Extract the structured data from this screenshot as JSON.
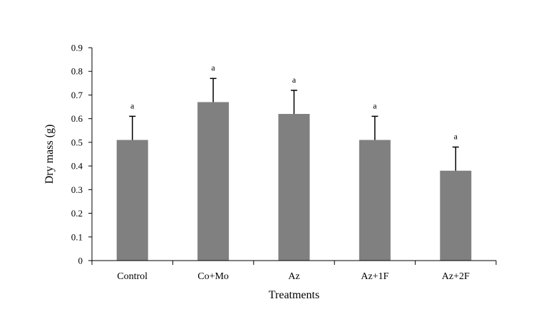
{
  "chart_data": {
    "type": "bar",
    "title": "",
    "xlabel": "Treatments",
    "ylabel": "Dry mass (g)",
    "ylim": [
      0,
      0.9
    ],
    "yticks": [
      "0",
      "0.1",
      "0.2",
      "0.3",
      "0.4",
      "0.5",
      "0.6",
      "0.7",
      "0.8",
      "0.9"
    ],
    "categories": [
      "Control",
      "Co+Mo",
      "Az",
      "Az+1F",
      "Az+2F"
    ],
    "values": [
      0.51,
      0.67,
      0.62,
      0.51,
      0.38
    ],
    "errors": [
      0.1,
      0.1,
      0.1,
      0.1,
      0.1
    ],
    "significance_labels": [
      "a",
      "a",
      "a",
      "a",
      "a"
    ],
    "bar_color": "#808080",
    "grid": false,
    "legend": "none"
  }
}
